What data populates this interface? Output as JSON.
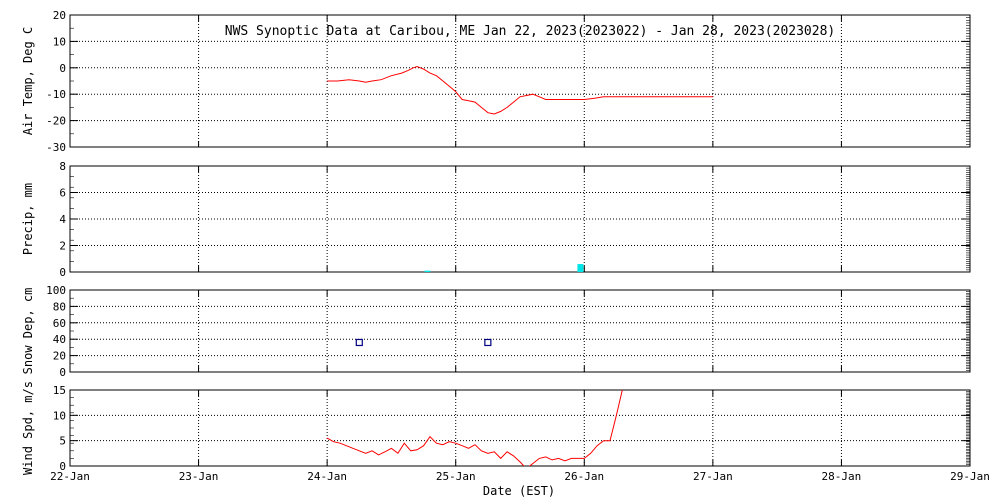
{
  "chart_data": {
    "type": "line",
    "title": "NWS Synoptic Data at Caribou, ME   Jan 22, 2023(2023022) - Jan 28, 2023(2023028)",
    "xlabel": "Date (EST)",
    "x_ticks": [
      "22-Jan",
      "23-Jan",
      "24-Jan",
      "25-Jan",
      "26-Jan",
      "27-Jan",
      "28-Jan",
      "29-Jan"
    ],
    "xlim": [
      0,
      7
    ],
    "grid": true,
    "panels": [
      {
        "id": "air-temp",
        "type": "line",
        "ylabel": "Air Temp, Deg C",
        "ylim": [
          -30,
          20
        ],
        "yticks": [
          20,
          10,
          0,
          -10,
          -20,
          -30
        ],
        "color": "#ff0000",
        "series": [
          {
            "x": [
              2.0,
              2.08,
              2.17,
              2.25,
              2.3,
              2.35,
              2.42,
              2.5,
              2.58,
              2.63,
              2.67,
              2.7,
              2.75,
              2.8,
              2.85,
              2.9,
              2.95,
              3.0,
              3.05,
              3.1,
              3.15,
              3.2,
              3.25,
              3.3,
              3.35,
              3.4,
              3.45,
              3.5,
              3.55,
              3.6,
              3.65,
              3.7,
              3.8,
              3.9,
              4.0,
              4.08,
              4.15,
              4.25,
              4.5,
              4.75,
              5.0
            ],
            "y": [
              -5,
              -5,
              -4.5,
              -5,
              -5.5,
              -5,
              -4.5,
              -3,
              -2,
              -1,
              0,
              0.5,
              -0.5,
              -2,
              -3,
              -5,
              -7,
              -9,
              -12,
              -12.5,
              -13,
              -15,
              -17,
              -17.5,
              -16.5,
              -15,
              -13,
              -11,
              -10.5,
              -10,
              -11,
              -12,
              -12,
              -12,
              -12,
              -11.5,
              -11,
              -11,
              -11,
              -11,
              -11
            ]
          }
        ]
      },
      {
        "id": "precip",
        "type": "bar",
        "ylabel": "Precip, mm",
        "ylim": [
          0,
          8
        ],
        "yticks": [
          8,
          6,
          4,
          2,
          0
        ],
        "color": "#00e5e5",
        "series": [
          {
            "x": [
              2.78,
              3.97
            ],
            "y": [
              0.1,
              0.6
            ]
          }
        ]
      },
      {
        "id": "snow-depth",
        "type": "scatter",
        "ylabel": "Snow Dep, cm",
        "ylim": [
          0,
          100
        ],
        "yticks": [
          100,
          80,
          60,
          40,
          20,
          0
        ],
        "color": "#000080",
        "series": [
          {
            "x": [
              2.25,
              3.25
            ],
            "y": [
              36,
              36
            ]
          }
        ]
      },
      {
        "id": "wind-speed",
        "type": "line",
        "ylabel": "Wind Spd, m/s",
        "ylim": [
          0,
          15
        ],
        "yticks": [
          15,
          10,
          5,
          0
        ],
        "color": "#ff0000",
        "series": [
          {
            "x": [
              2.0,
              2.05,
              2.1,
              2.15,
              2.2,
              2.25,
              2.3,
              2.35,
              2.4,
              2.45,
              2.5,
              2.55,
              2.6,
              2.65,
              2.7,
              2.75,
              2.8,
              2.85,
              2.9,
              2.95,
              3.0,
              3.05,
              3.1,
              3.15,
              3.2,
              3.25,
              3.3,
              3.35,
              3.4,
              3.45,
              3.5,
              3.55,
              3.6,
              3.65,
              3.7,
              3.75,
              3.8,
              3.85,
              3.9,
              3.95,
              4.0,
              4.05,
              4.1,
              4.15,
              4.2,
              4.25,
              4.3
            ],
            "y": [
              5.5,
              4.8,
              4.5,
              4.0,
              3.5,
              3.0,
              2.5,
              3.0,
              2.2,
              2.8,
              3.5,
              2.5,
              4.5,
              3.0,
              3.2,
              4.0,
              5.8,
              4.5,
              4.2,
              4.8,
              4.5,
              4.0,
              3.5,
              4.2,
              3.0,
              2.5,
              2.8,
              1.5,
              2.8,
              2.0,
              0.8,
              -0.5,
              0.5,
              1.5,
              1.8,
              1.2,
              1.5,
              1.0,
              1.5,
              1.5,
              1.5,
              2.5,
              4.0,
              5.0,
              5.0,
              10.0,
              15.5
            ]
          }
        ]
      }
    ]
  }
}
